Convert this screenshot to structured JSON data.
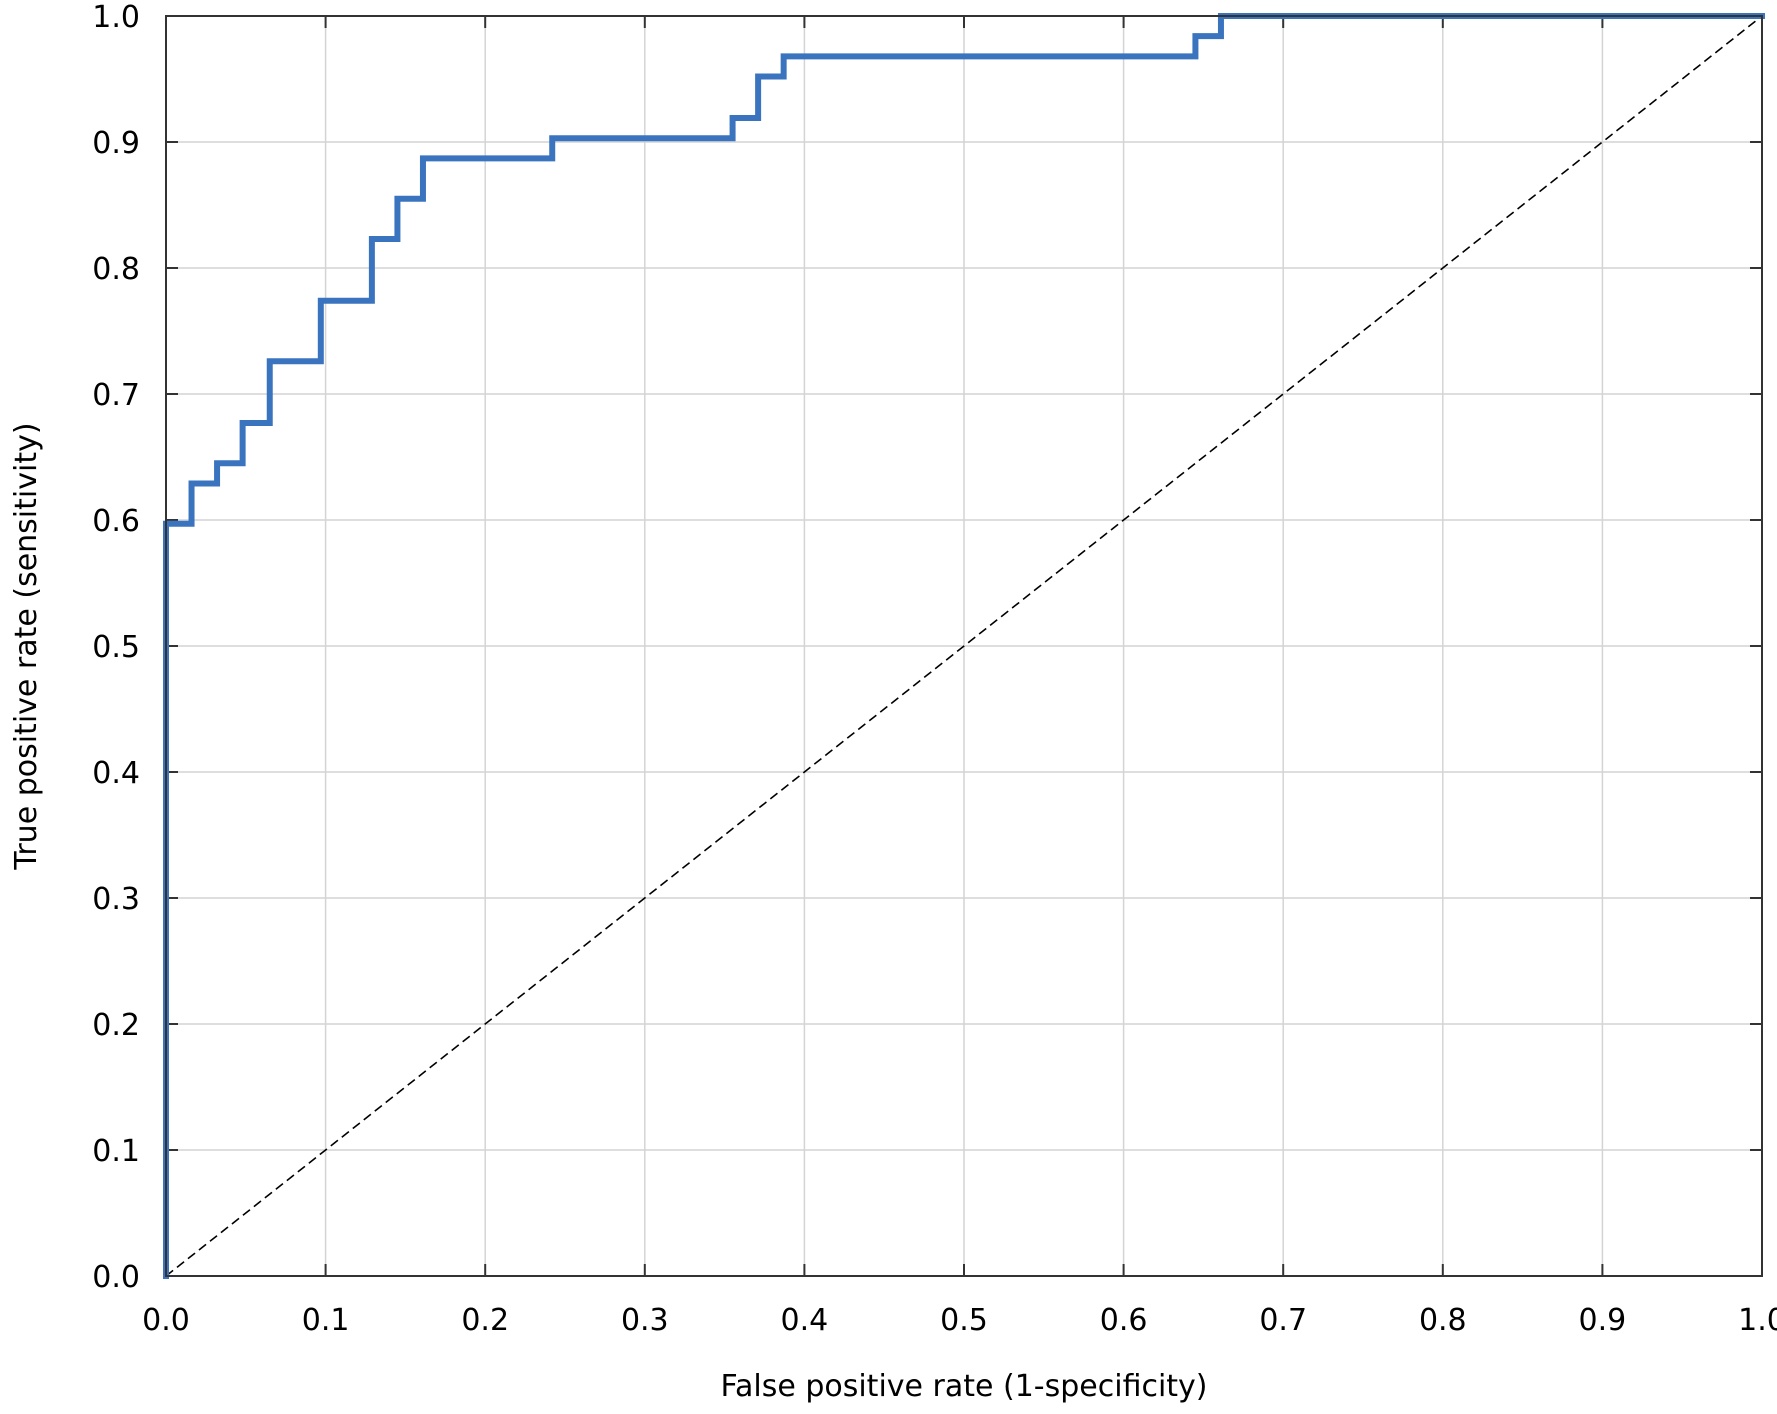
{
  "chart_data": {
    "type": "line",
    "title": "",
    "xlabel": "False positive rate (1-specificity)",
    "ylabel": "True positive rate (sensitivity)",
    "xlim": [
      0.0,
      1.0
    ],
    "ylim": [
      0.0,
      1.0
    ],
    "x_ticks": [
      "0.0",
      "0.1",
      "0.2",
      "0.3",
      "0.4",
      "0.5",
      "0.6",
      "0.7",
      "0.8",
      "0.9",
      "1.0"
    ],
    "y_ticks": [
      "0.0",
      "0.1",
      "0.2",
      "0.3",
      "0.4",
      "0.5",
      "0.6",
      "0.7",
      "0.8",
      "0.9",
      "1.0"
    ],
    "grid": true,
    "legend": "none",
    "series": [
      {
        "style": "step",
        "color": "#3a74bf",
        "points": [
          [
            0.0,
            0.0
          ],
          [
            0.0,
            0.597
          ],
          [
            0.016,
            0.597
          ],
          [
            0.016,
            0.629
          ],
          [
            0.032,
            0.629
          ],
          [
            0.032,
            0.645
          ],
          [
            0.048,
            0.645
          ],
          [
            0.048,
            0.677
          ],
          [
            0.065,
            0.677
          ],
          [
            0.065,
            0.726
          ],
          [
            0.097,
            0.726
          ],
          [
            0.097,
            0.774
          ],
          [
            0.129,
            0.774
          ],
          [
            0.129,
            0.823
          ],
          [
            0.145,
            0.823
          ],
          [
            0.145,
            0.855
          ],
          [
            0.161,
            0.855
          ],
          [
            0.161,
            0.887
          ],
          [
            0.242,
            0.887
          ],
          [
            0.242,
            0.903
          ],
          [
            0.355,
            0.903
          ],
          [
            0.355,
            0.919
          ],
          [
            0.371,
            0.919
          ],
          [
            0.371,
            0.952
          ],
          [
            0.387,
            0.952
          ],
          [
            0.387,
            0.968
          ],
          [
            0.645,
            0.968
          ],
          [
            0.645,
            0.984
          ],
          [
            0.661,
            0.984
          ],
          [
            0.661,
            1.0
          ],
          [
            1.0,
            1.0
          ]
        ]
      },
      {
        "style": "dashed",
        "color": "#000000",
        "points": [
          [
            0.0,
            0.0
          ],
          [
            1.0,
            1.0
          ]
        ]
      }
    ]
  }
}
